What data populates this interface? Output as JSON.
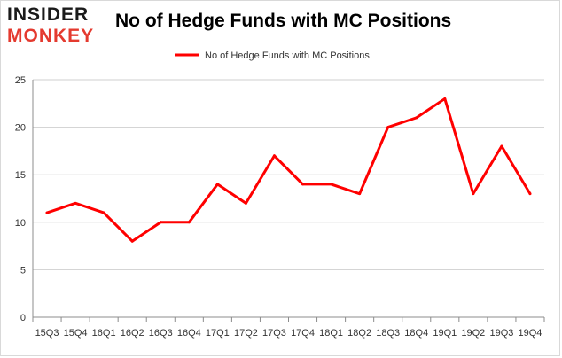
{
  "brand": {
    "top": "INSIDER",
    "bottom": "MONKEY"
  },
  "chart_data": {
    "type": "line",
    "title": "No of Hedge Funds with MC Positions",
    "xlabel": "",
    "ylabel": "",
    "categories": [
      "15Q3",
      "15Q4",
      "16Q1",
      "16Q2",
      "16Q3",
      "16Q4",
      "17Q1",
      "17Q2",
      "17Q3",
      "17Q4",
      "18Q1",
      "18Q2",
      "18Q3",
      "18Q4",
      "19Q1",
      "19Q2",
      "19Q3",
      "19Q4"
    ],
    "series": [
      {
        "name": "No of Hedge Funds with MC Positions",
        "color": "#ff0000",
        "values": [
          11,
          12,
          11,
          8,
          10,
          10,
          14,
          12,
          17,
          14,
          14,
          13,
          20,
          21,
          23,
          13,
          18,
          13
        ]
      }
    ],
    "ylim": [
      0,
      25
    ],
    "yticks": [
      "0",
      "5",
      "10",
      "15",
      "20",
      "25"
    ],
    "grid": true,
    "legend": "top-center"
  }
}
